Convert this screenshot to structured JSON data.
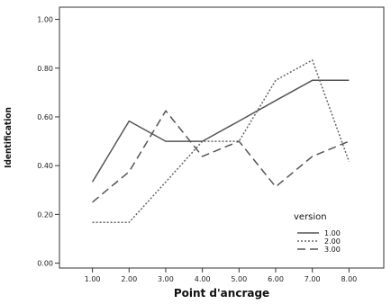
{
  "chart_data": {
    "type": "line",
    "xlabel": "Point d'ancrage",
    "ylabel": "Identification",
    "x": [
      1,
      2,
      3,
      4,
      5,
      6,
      7,
      8
    ],
    "x_tick_labels": [
      "1.00",
      "2.00",
      "3.00",
      "4.00",
      "5.00",
      "6.00",
      "7.00",
      "8.00"
    ],
    "y_tick_values": [
      0,
      0.2,
      0.4,
      0.6,
      0.8,
      1.0
    ],
    "y_tick_labels": [
      "0.00",
      "0.20",
      "0.40",
      "0.60",
      "0.80",
      "1.00"
    ],
    "xlim": [
      0.1,
      8.95
    ],
    "ylim": [
      -0.02,
      1.05
    ],
    "grid": false,
    "legend": {
      "title": "version",
      "placement": "bottom-right"
    },
    "series": [
      {
        "name": "1.00",
        "style": "solid",
        "color": "#555555",
        "values": [
          0.333,
          0.583,
          0.5,
          0.5,
          0.583,
          0.667,
          0.75,
          0.75
        ]
      },
      {
        "name": "2.00",
        "style": "dotted",
        "color": "#666666",
        "values": [
          0.167,
          0.167,
          0.333,
          0.5,
          0.5,
          0.75,
          0.833,
          0.417
        ]
      },
      {
        "name": "3.00",
        "style": "dashed",
        "color": "#555555",
        "values": [
          0.25,
          0.375,
          0.625,
          0.438,
          0.5,
          0.313,
          0.438,
          0.5
        ]
      }
    ]
  }
}
